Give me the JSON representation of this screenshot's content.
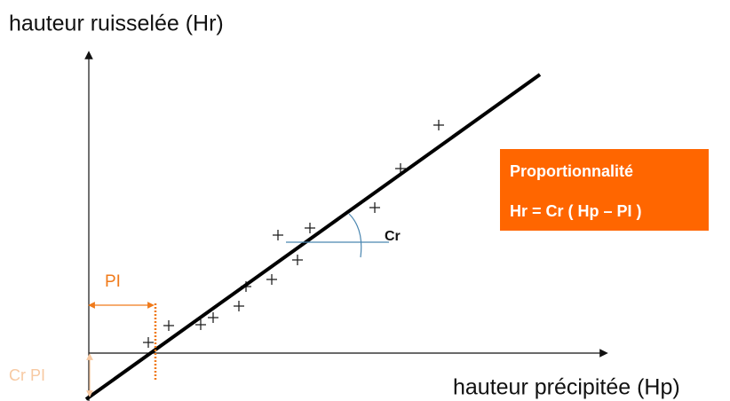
{
  "y_axis_label": "hauteur ruisselée (Hr)",
  "x_axis_label": "hauteur précipitée (Hp)",
  "annotations": {
    "pi": "PI",
    "cr_pi": "Cr PI",
    "cr": "Cr"
  },
  "box": {
    "title": "Proportionnalité",
    "formula": "Hr = Cr ( Hp – PI )"
  }
}
